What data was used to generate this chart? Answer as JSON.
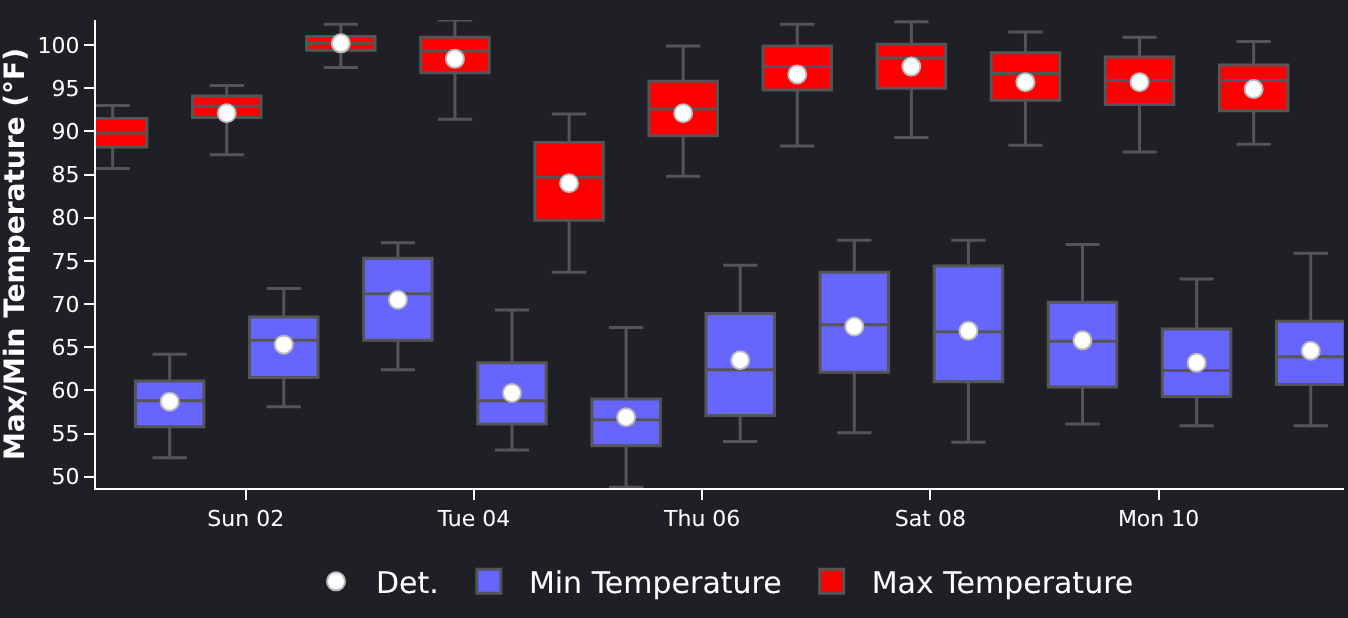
{
  "chart_data": {
    "type": "box",
    "ylabel": "Max/Min Temperature (°F)",
    "legend": "bottom",
    "grid": false,
    "xlim": [
      "--05-31T16:30",
      "--06-11T15:00"
    ],
    "xticks": [
      {
        "value": "--06-02",
        "label": "Sun 02"
      },
      {
        "value": "--06-04",
        "label": "Tue 04"
      },
      {
        "value": "--06-06",
        "label": "Thu 06"
      },
      {
        "value": "--06-08",
        "label": "Sat 08"
      },
      {
        "value": "--06-10",
        "label": "Mon 10"
      }
    ],
    "ylim": [
      48.7,
      102.9
    ],
    "yticks": [
      50,
      55,
      60,
      65,
      70,
      75,
      80,
      85,
      90,
      95,
      100
    ],
    "series": [
      {
        "name": "Det.",
        "type": "scatter",
        "marker": "circle",
        "color": "#ffffff",
        "x": [
          "--06-01T20:00",
          "--06-02T20:00",
          "--06-03T20:00",
          "--06-04T20:00",
          "--06-05T20:00",
          "--06-06T20:00",
          "--06-07T20:00",
          "--06-08T20:00",
          "--06-09T20:00",
          "--06-10T20:00",
          "--06-01T08:00",
          "--06-02T08:00",
          "--06-03T08:00",
          "--06-04T08:00",
          "--06-05T08:00",
          "--06-06T08:00",
          "--06-07T08:00",
          "--06-08T08:00",
          "--06-09T08:00",
          "--06-10T08:00",
          "--06-11T08:00"
        ],
        "values": [
          92.1,
          100.2,
          98.4,
          84.0,
          92.1,
          96.6,
          97.5,
          95.7,
          95.7,
          94.9,
          58.7,
          65.3,
          70.5,
          59.7,
          56.9,
          63.5,
          67.4,
          66.9,
          65.8,
          63.2,
          64.6
        ]
      },
      {
        "name": "Min Temperature",
        "color": "#6666ff",
        "x": [
          "--06-01T08:00",
          "--06-02T08:00",
          "--06-03T08:00",
          "--06-04T08:00",
          "--06-05T08:00",
          "--06-06T08:00",
          "--06-07T08:00",
          "--06-08T08:00",
          "--06-09T08:00",
          "--06-10T08:00",
          "--06-11T08:00"
        ],
        "boxes": [
          {
            "low": 52.2,
            "q1": 55.8,
            "median": 58.8,
            "q3": 61.1,
            "high": 64.2
          },
          {
            "low": 58.1,
            "q1": 61.5,
            "median": 65.8,
            "q3": 68.5,
            "high": 71.8
          },
          {
            "low": 62.4,
            "q1": 65.8,
            "median": 71.2,
            "q3": 75.3,
            "high": 77.1
          },
          {
            "low": 53.1,
            "q1": 56.1,
            "median": 58.8,
            "q3": 63.2,
            "high": 69.3
          },
          {
            "low": 48.8,
            "q1": 53.6,
            "median": 56.6,
            "q3": 59.0,
            "high": 67.3
          },
          {
            "low": 54.1,
            "q1": 57.1,
            "median": 62.4,
            "q3": 68.9,
            "high": 74.5
          },
          {
            "low": 55.1,
            "q1": 62.1,
            "median": 67.6,
            "q3": 73.7,
            "high": 77.4
          },
          {
            "low": 54.0,
            "q1": 61.0,
            "median": 66.8,
            "q3": 74.4,
            "high": 77.4
          },
          {
            "low": 56.1,
            "q1": 60.4,
            "median": 65.7,
            "q3": 70.2,
            "high": 76.9
          },
          {
            "low": 55.9,
            "q1": 59.3,
            "median": 62.3,
            "q3": 67.1,
            "high": 72.9
          },
          {
            "low": 55.9,
            "q1": 60.7,
            "median": 63.9,
            "q3": 68.0,
            "high": 75.9
          }
        ]
      },
      {
        "name": "Max Temperature",
        "color": "#ff0000",
        "x": [
          "--05-31T20:00",
          "--06-01T20:00",
          "--06-02T20:00",
          "--06-03T20:00",
          "--06-04T20:00",
          "--06-05T20:00",
          "--06-06T20:00",
          "--06-07T20:00",
          "--06-08T20:00",
          "--06-09T20:00",
          "--06-10T20:00"
        ],
        "boxes": [
          {
            "low": 85.7,
            "q1": 88.2,
            "median": 89.8,
            "q3": 91.5,
            "high": 93.0
          },
          {
            "low": 87.3,
            "q1": 91.6,
            "median": 92.9,
            "q3": 94.1,
            "high": 95.3
          },
          {
            "low": 97.4,
            "q1": 99.4,
            "median": 100.2,
            "q3": 101.0,
            "high": 102.4
          },
          {
            "low": 91.4,
            "q1": 96.8,
            "median": 99.3,
            "q3": 100.9,
            "high": 102.9
          },
          {
            "low": 73.7,
            "q1": 79.7,
            "median": 84.7,
            "q3": 88.7,
            "high": 92.0
          },
          {
            "low": 84.8,
            "q1": 89.5,
            "median": 92.6,
            "q3": 95.8,
            "high": 99.9
          },
          {
            "low": 88.3,
            "q1": 94.8,
            "median": 97.5,
            "q3": 99.9,
            "high": 102.4
          },
          {
            "low": 89.3,
            "q1": 95.0,
            "median": 98.5,
            "q3": 100.1,
            "high": 102.7
          },
          {
            "low": 88.4,
            "q1": 93.6,
            "median": 96.7,
            "q3": 99.1,
            "high": 101.5
          },
          {
            "low": 87.6,
            "q1": 93.1,
            "median": 95.9,
            "q3": 98.6,
            "high": 100.9
          },
          {
            "low": 88.5,
            "q1": 92.4,
            "median": 95.9,
            "q3": 97.7,
            "high": 100.4
          }
        ]
      }
    ]
  }
}
